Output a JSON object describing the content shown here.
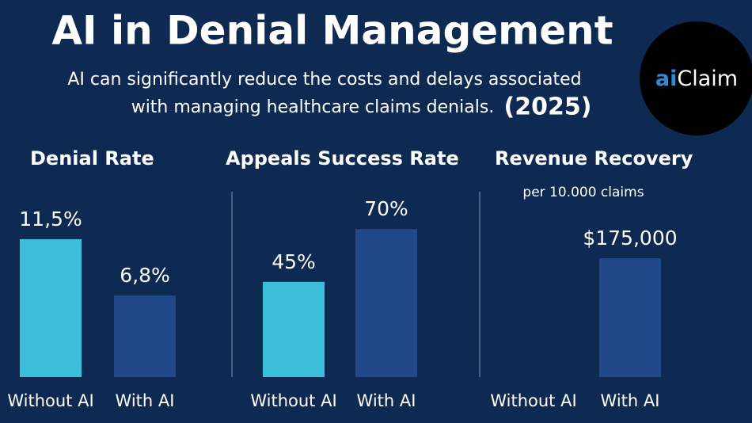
{
  "header": {
    "title": "AI in Denial Management",
    "subtitle_lines": [
      "AI can significantly reduce the costs and delays associated",
      "with managing healthcare claims denials."
    ],
    "year": "(2025)"
  },
  "logo": {
    "prefix": "ai",
    "name": "Claim"
  },
  "chart_data": [
    {
      "type": "bar",
      "title": "Denial Rate",
      "categories": [
        "Without AI",
        "With AI"
      ],
      "values": [
        11.5,
        6.8
      ],
      "value_labels": [
        "11,5%",
        "6,8%"
      ],
      "colors": [
        "#3bbfd9",
        "#21498a"
      ],
      "ylim": [
        0,
        15
      ]
    },
    {
      "type": "bar",
      "title": "Appeals Success Rate",
      "categories": [
        "Without AI",
        "With AI"
      ],
      "values": [
        45,
        70
      ],
      "value_labels": [
        "45%",
        "70%"
      ],
      "colors": [
        "#3bbfd9",
        "#21498a"
      ],
      "ylim": [
        0,
        85
      ]
    },
    {
      "type": "bar",
      "title": "Revenue Recovery",
      "subtitle": "per 10.000 claims",
      "categories": [
        "Without AI",
        "With AI"
      ],
      "values": [
        null,
        175000
      ],
      "value_labels": [
        null,
        "$175,000"
      ],
      "colors": [
        "#3bbfd9",
        "#21498a"
      ],
      "ylim": [
        0,
        265000
      ]
    }
  ]
}
